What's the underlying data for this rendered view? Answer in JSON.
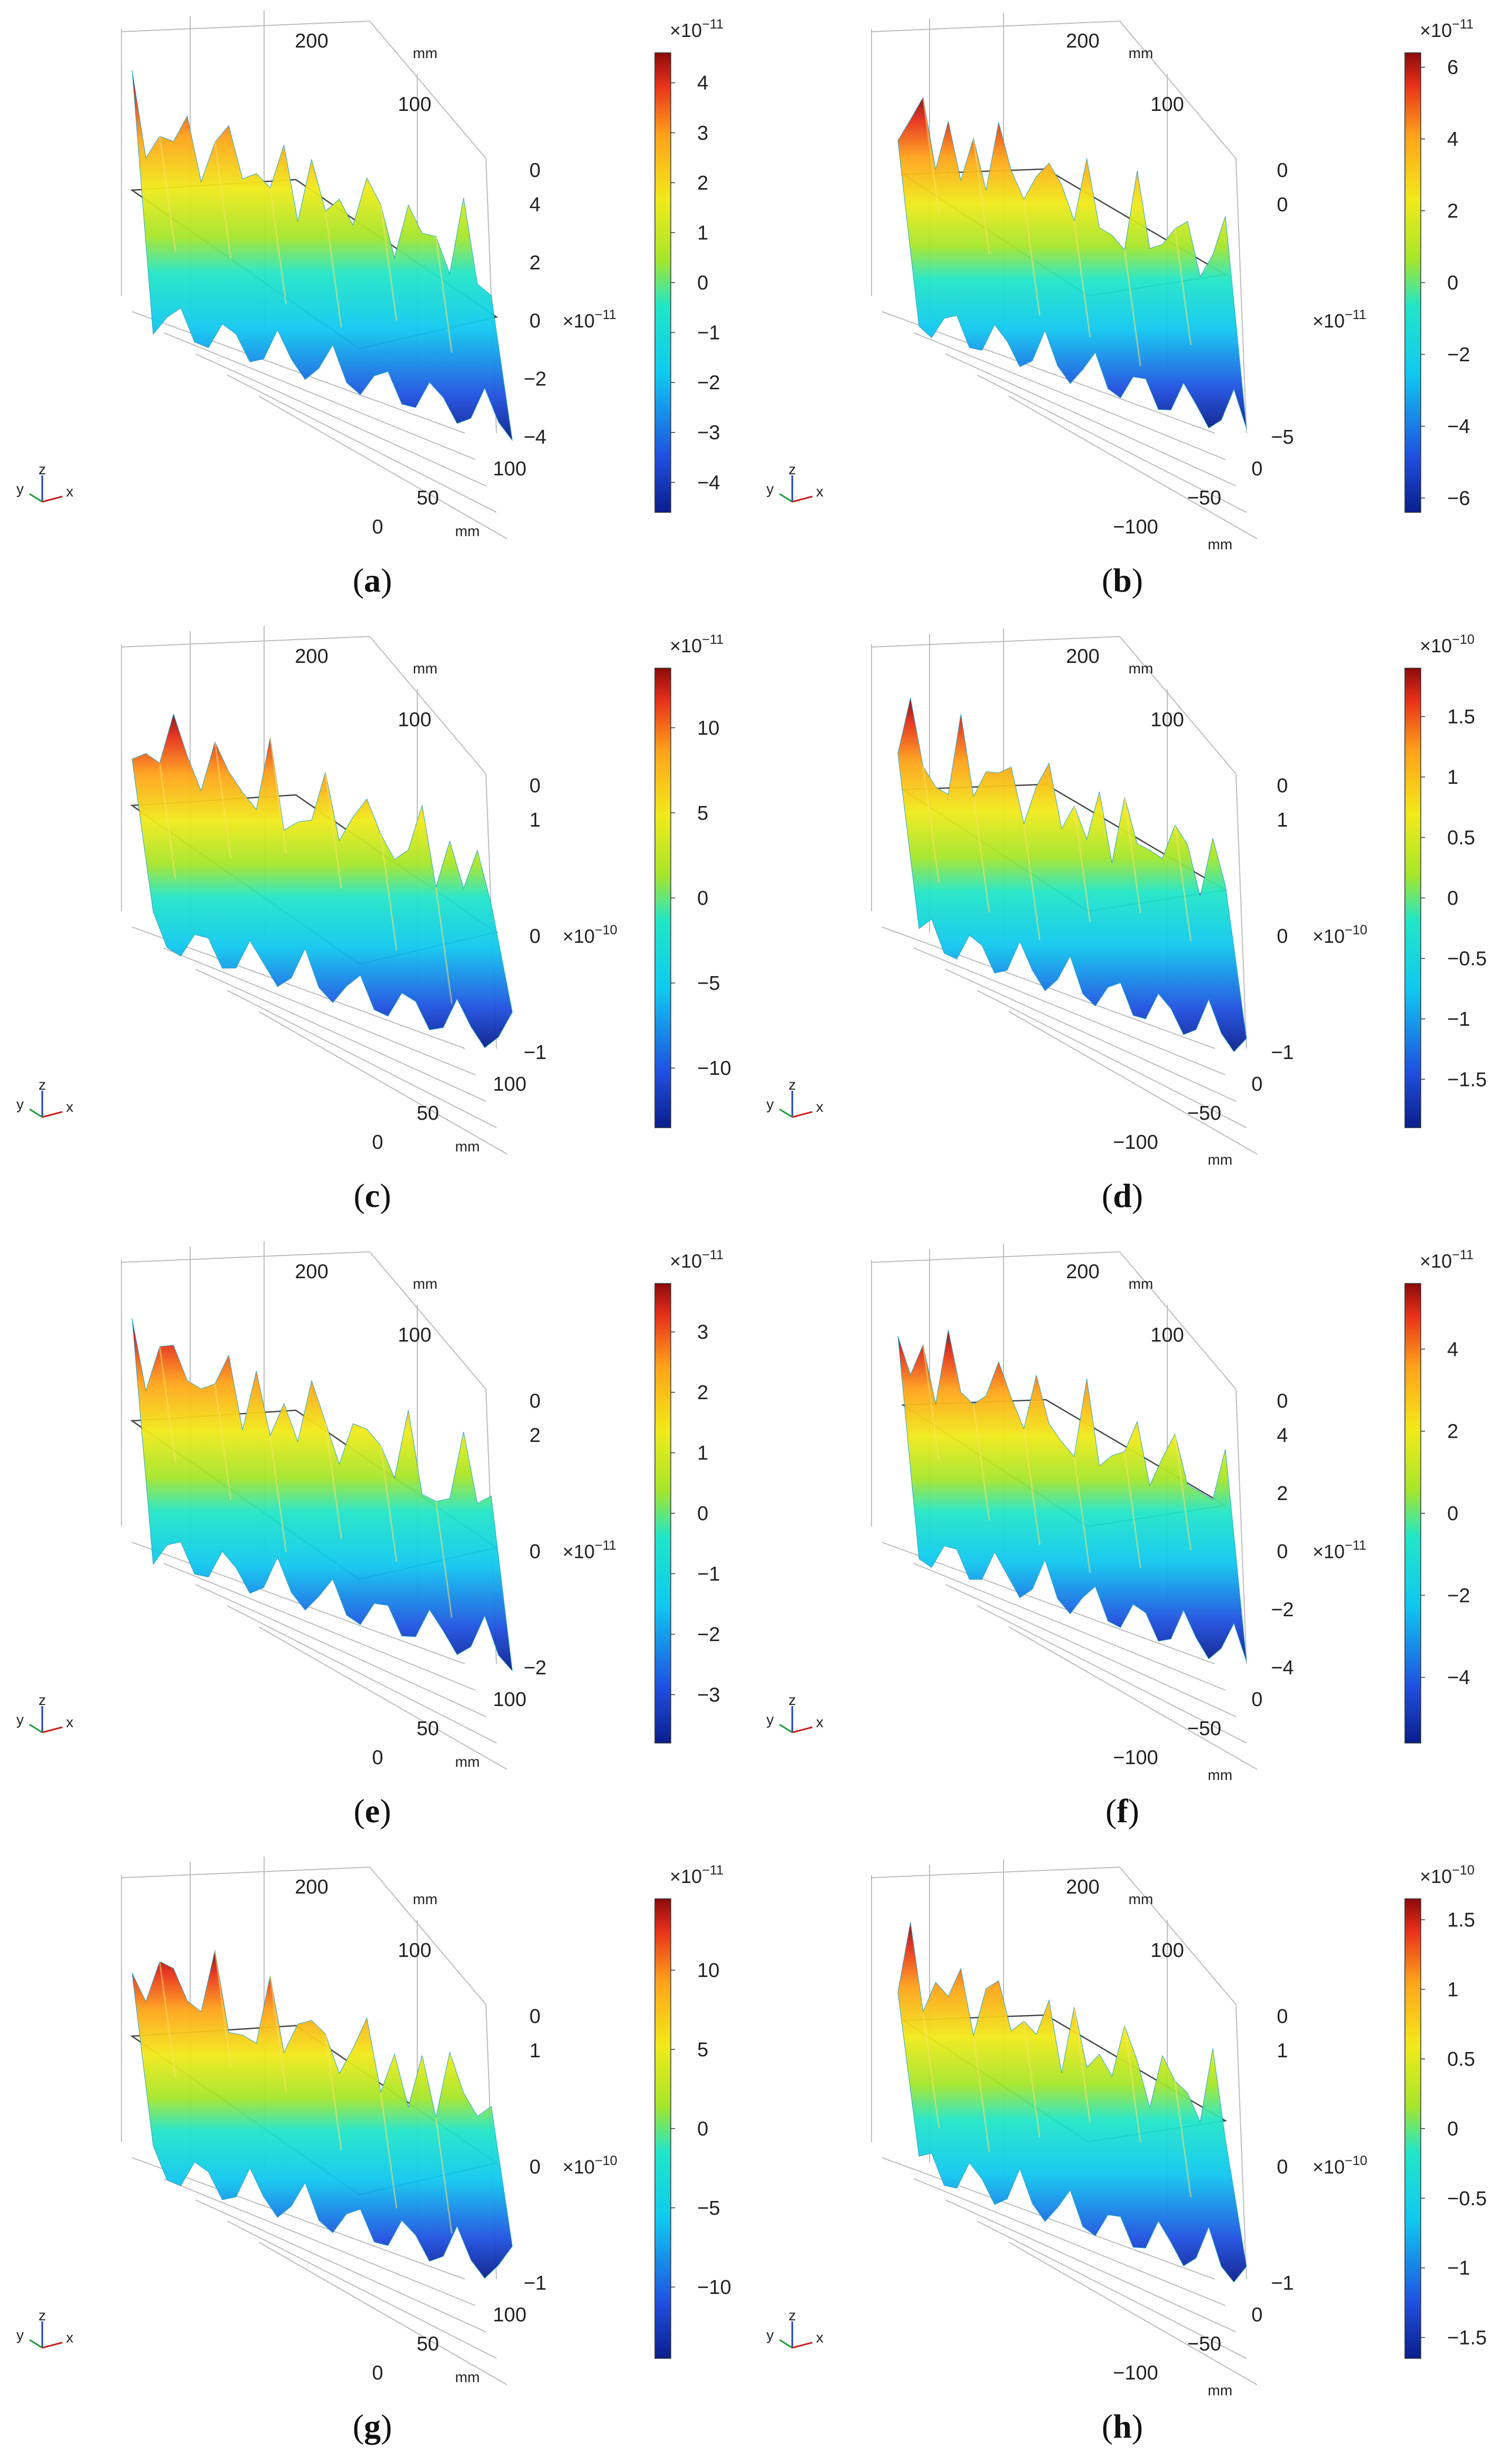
{
  "figure": {
    "axis_unit": "mm",
    "triad": {
      "y": "y",
      "z": "z",
      "x": "x"
    }
  },
  "chart_data": [
    {
      "type": "surface",
      "label": "(a)",
      "label_letter": "a",
      "variant": "A",
      "colorbar": {
        "exponent": "×10^-11",
        "min": -4.6,
        "max": 4.6,
        "ticks": [
          -4,
          -3,
          -2,
          -1,
          0,
          1,
          2,
          3,
          4
        ]
      },
      "z_axis": {
        "exponent": "×10^-11",
        "ticks": [
          -4,
          -2,
          0,
          2,
          4
        ],
        "top_label": "0"
      },
      "y_axis": {
        "ticks": [
          0,
          50,
          100
        ],
        "unit": "mm"
      },
      "x_axis": {
        "ticks": [
          200,
          100
        ],
        "unit": "mm"
      }
    },
    {
      "type": "surface",
      "label": "(b)",
      "label_letter": "b",
      "variant": "B",
      "colorbar": {
        "exponent": "×10^-11",
        "min": -6.4,
        "max": 6.4,
        "ticks": [
          -6,
          -4,
          -2,
          0,
          2,
          4,
          6
        ]
      },
      "z_axis": {
        "exponent": "×10^-11",
        "ticks": [
          -5,
          0
        ],
        "top_label": "0"
      },
      "y_axis": {
        "ticks": [
          -100,
          -50,
          0
        ],
        "unit": "mm"
      },
      "x_axis": {
        "ticks": [
          200,
          100
        ],
        "unit": "mm"
      }
    },
    {
      "type": "surface",
      "label": "(c)",
      "label_letter": "c",
      "variant": "A",
      "colorbar": {
        "exponent": "×10^-11",
        "min": -13.5,
        "max": 13.5,
        "ticks": [
          -10,
          -5,
          0,
          5,
          10
        ]
      },
      "z_axis": {
        "exponent": "×10^-10",
        "ticks": [
          -1,
          0,
          1
        ],
        "top_label": "0"
      },
      "y_axis": {
        "ticks": [
          0,
          50,
          100
        ],
        "unit": "mm"
      },
      "x_axis": {
        "ticks": [
          200,
          100
        ],
        "unit": "mm"
      }
    },
    {
      "type": "surface",
      "label": "(d)",
      "label_letter": "d",
      "variant": "B",
      "colorbar": {
        "exponent": "×10^-10",
        "min": -1.9,
        "max": 1.9,
        "ticks": [
          -1.5,
          -1,
          -0.5,
          0,
          0.5,
          1,
          1.5
        ]
      },
      "z_axis": {
        "exponent": "×10^-10",
        "ticks": [
          -1,
          0,
          1
        ],
        "top_label": "0"
      },
      "y_axis": {
        "ticks": [
          -100,
          -50,
          0
        ],
        "unit": "mm"
      },
      "x_axis": {
        "ticks": [
          200,
          100
        ],
        "unit": "mm"
      }
    },
    {
      "type": "surface",
      "label": "(e)",
      "label_letter": "e",
      "variant": "A",
      "colorbar": {
        "exponent": "×10^-11",
        "min": -3.8,
        "max": 3.8,
        "ticks": [
          -3,
          -2,
          -1,
          0,
          1,
          2,
          3
        ]
      },
      "z_axis": {
        "exponent": "×10^-11",
        "ticks": [
          -2,
          0,
          2
        ],
        "top_label": "0"
      },
      "y_axis": {
        "ticks": [
          0,
          50,
          100
        ],
        "unit": "mm"
      },
      "x_axis": {
        "ticks": [
          200,
          100
        ],
        "unit": "mm"
      }
    },
    {
      "type": "surface",
      "label": "(f)",
      "label_letter": "f",
      "variant": "B",
      "colorbar": {
        "exponent": "×10^-11",
        "min": -5.6,
        "max": 5.6,
        "ticks": [
          -4,
          -2,
          0,
          2,
          4
        ]
      },
      "z_axis": {
        "exponent": "×10^-11",
        "ticks": [
          -4,
          -2,
          0,
          2,
          4
        ],
        "top_label": "0"
      },
      "y_axis": {
        "ticks": [
          -100,
          -50,
          0
        ],
        "unit": "mm"
      },
      "x_axis": {
        "ticks": [
          200,
          100
        ],
        "unit": "mm"
      }
    },
    {
      "type": "surface",
      "label": "(g)",
      "label_letter": "g",
      "variant": "A",
      "colorbar": {
        "exponent": "×10^-11",
        "min": -14.5,
        "max": 14.5,
        "ticks": [
          -10,
          -5,
          0,
          5,
          10
        ]
      },
      "z_axis": {
        "exponent": "×10^-10",
        "ticks": [
          -1,
          0,
          1
        ],
        "top_label": "0"
      },
      "y_axis": {
        "ticks": [
          0,
          50,
          100
        ],
        "unit": "mm"
      },
      "x_axis": {
        "ticks": [
          200,
          100
        ],
        "unit": "mm"
      }
    },
    {
      "type": "surface",
      "label": "(h)",
      "label_letter": "h",
      "variant": "B",
      "colorbar": {
        "exponent": "×10^-10",
        "min": -1.65,
        "max": 1.65,
        "ticks": [
          -1.5,
          -1,
          -0.5,
          0,
          0.5,
          1,
          1.5
        ]
      },
      "z_axis": {
        "exponent": "×10^-10",
        "ticks": [
          -1,
          0,
          1
        ],
        "top_label": "0"
      },
      "y_axis": {
        "ticks": [
          -100,
          -50,
          0
        ],
        "unit": "mm"
      },
      "x_axis": {
        "ticks": [
          200,
          100
        ],
        "unit": "mm"
      }
    }
  ]
}
